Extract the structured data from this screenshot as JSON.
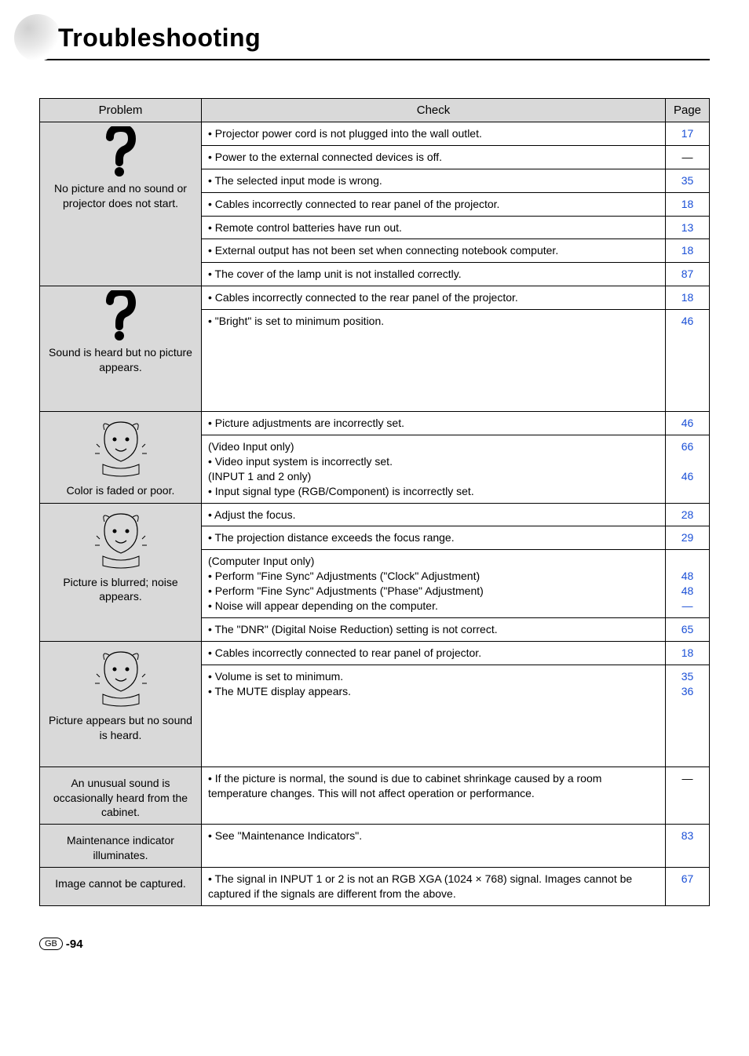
{
  "title": "Troubleshooting",
  "headers": {
    "problem": "Problem",
    "check": "Check",
    "page": "Page"
  },
  "page_link_color": "#1a4fd6",
  "header_bg": "#d9d9d9",
  "groups": [
    {
      "problem_label": "No picture and no sound or projector does not start.",
      "icon": "question",
      "rows": [
        {
          "check": "• Projector power cord is not plugged into the wall outlet.",
          "page": "17"
        },
        {
          "check": "• Power to the external connected devices is off.",
          "page": "—"
        },
        {
          "check": "• The selected input mode is wrong.",
          "page": "35"
        },
        {
          "check": "• Cables incorrectly connected to rear panel of the projector.",
          "page": "18"
        },
        {
          "check": "• Remote control batteries have run out.",
          "page": "13"
        },
        {
          "check": "• External output has not been set when connecting notebook computer.",
          "page": "18"
        },
        {
          "check": "• The cover of the lamp unit is not installed correctly.",
          "page": "87"
        }
      ]
    },
    {
      "problem_label": "Sound is heard but no picture appears.",
      "icon": "question",
      "rows": [
        {
          "check": "• Cables incorrectly connected to the rear panel of the projector.",
          "page": "18"
        },
        {
          "check": "• \"Bright\" is set to minimum position.",
          "page": "46",
          "tall": true
        }
      ]
    },
    {
      "problem_label": "Color is faded or poor.",
      "icon": "face1",
      "rows": [
        {
          "check": "• Picture adjustments are incorrectly set.",
          "page": "46"
        },
        {
          "check": "(Video Input only)\n• Video input system is incorrectly set.\n(INPUT 1 and 2 only)\n• Input signal type (RGB/Component) is incorrectly set.",
          "page": "66\n\n46",
          "multi": true
        }
      ]
    },
    {
      "problem_label": "Picture is blurred; noise appears.",
      "icon": "face2",
      "rows": [
        {
          "check": "• Adjust the focus.",
          "page": "28"
        },
        {
          "check": "• The projection distance exceeds the focus range.",
          "page": "29"
        },
        {
          "check": "(Computer Input only)\n• Perform \"Fine Sync\" Adjustments (\"Clock\" Adjustment)\n• Perform \"Fine Sync\" Adjustments (\"Phase\" Adjustment)\n• Noise will appear depending on the computer.",
          "page": "\n48\n48\n—",
          "multi": true
        },
        {
          "check": "• The \"DNR\" (Digital Noise Reduction) setting is not correct.",
          "page": "65"
        }
      ]
    },
    {
      "problem_label": "Picture appears but no sound is heard.",
      "icon": "face3",
      "rows": [
        {
          "check": "• Cables incorrectly connected to rear panel of projector.",
          "page": "18"
        },
        {
          "check": "• Volume is set to minimum.\n• The MUTE display appears.",
          "page": "35\n36",
          "multi": true,
          "tall": true
        }
      ]
    },
    {
      "problem_label": "An unusual sound is occasionally heard from the cabinet.",
      "icon": null,
      "rows": [
        {
          "check": "• If the picture is normal, the sound is due to cabinet shrinkage caused by a room temperature changes. This will not affect operation or performance.",
          "page": "—"
        }
      ]
    },
    {
      "problem_label": "Maintenance indicator illuminates.",
      "icon": null,
      "rows": [
        {
          "check": "• See \"Maintenance Indicators\".",
          "page": "83"
        }
      ]
    },
    {
      "problem_label": "Image cannot be captured.",
      "icon": null,
      "rows": [
        {
          "check": "• The signal in INPUT 1 or 2 is not an RGB XGA (1024 × 768) signal. Images cannot be captured if the signals are different from the above.",
          "page": "67"
        }
      ]
    }
  ],
  "footer": {
    "gb": "GB",
    "page_number": "-94"
  }
}
